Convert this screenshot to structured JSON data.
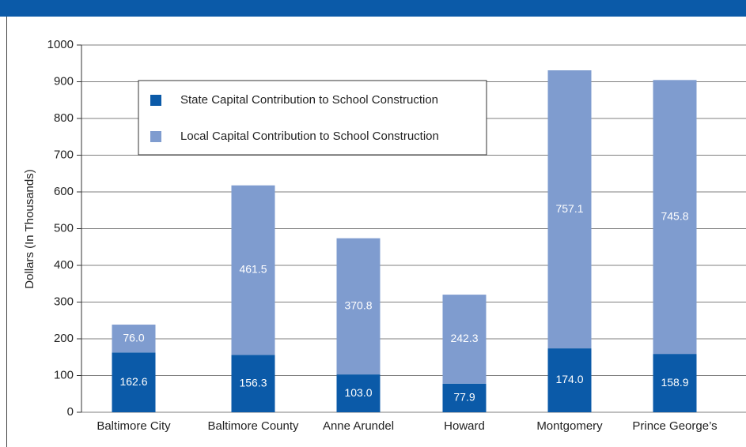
{
  "chart_data": {
    "type": "stacked_bar",
    "y_label": "Dollars (In Thousands)",
    "categories": [
      "Baltimore City",
      "Baltimore County",
      "Anne Arundel",
      "Howard",
      "Montgomery",
      "Prince George’s"
    ],
    "series": [
      {
        "name": "State Capital Contribution to School Construction",
        "color": "#0b5aa8",
        "values": [
          162.6,
          156.3,
          103.0,
          77.9,
          174.0,
          158.9
        ],
        "value_labels": [
          "162.6",
          "156.3",
          "103.0",
          "77.9",
          "174.0",
          "158.9"
        ]
      },
      {
        "name": "Local Capital Contribution to School Construction",
        "color": "#7f9ccf",
        "values": [
          76.0,
          461.5,
          370.8,
          242.3,
          757.1,
          745.8
        ],
        "value_labels": [
          "76.0",
          "461.5",
          "370.8",
          "242.3",
          "757.1",
          "745.8"
        ]
      }
    ],
    "ylim": [
      0,
      1000
    ],
    "yticks": [
      0,
      100,
      200,
      300,
      400,
      500,
      600,
      700,
      800,
      900,
      1000
    ],
    "grid": true,
    "legend_position": "upper left"
  }
}
